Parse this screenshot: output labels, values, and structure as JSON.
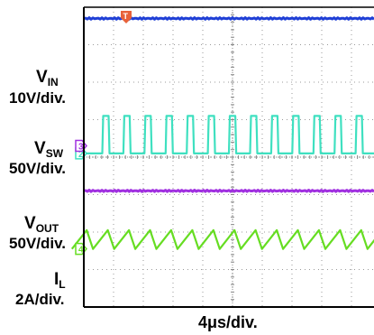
{
  "chart_data": {
    "type": "line",
    "time_scale": "4μs/div.",
    "divisions": {
      "horizontal": 10,
      "vertical": 8
    },
    "grid": true,
    "trigger_marker": "T",
    "channels": [
      {
        "id": "1",
        "name": "V",
        "subscript": "IN",
        "scale": "10V/div.",
        "color": "#1f3fd6",
        "waveform": "dc",
        "level_div": 7.7,
        "ripple_div": 0.02
      },
      {
        "id": "2",
        "name": "V",
        "subscript": "SW",
        "scale": "50V/div.",
        "color": "#3fe0c0",
        "waveform": "pulse",
        "low_div": 4.1,
        "high_div": 5.1,
        "period_div": 0.71,
        "duty": 0.3
      },
      {
        "id": "3",
        "name": "V",
        "subscript": "OUT",
        "scale": "50V/div.",
        "color": "#a030e0",
        "waveform": "dc",
        "level_div": 3.1,
        "ripple_div": 0.02
      },
      {
        "id": "4",
        "name": "I",
        "subscript": "L",
        "scale": "2A/div.",
        "color": "#66dd22",
        "waveform": "triangle",
        "low_div": 1.55,
        "high_div": 2.05,
        "period_div": 0.71,
        "rise_fraction": 0.7
      }
    ]
  }
}
